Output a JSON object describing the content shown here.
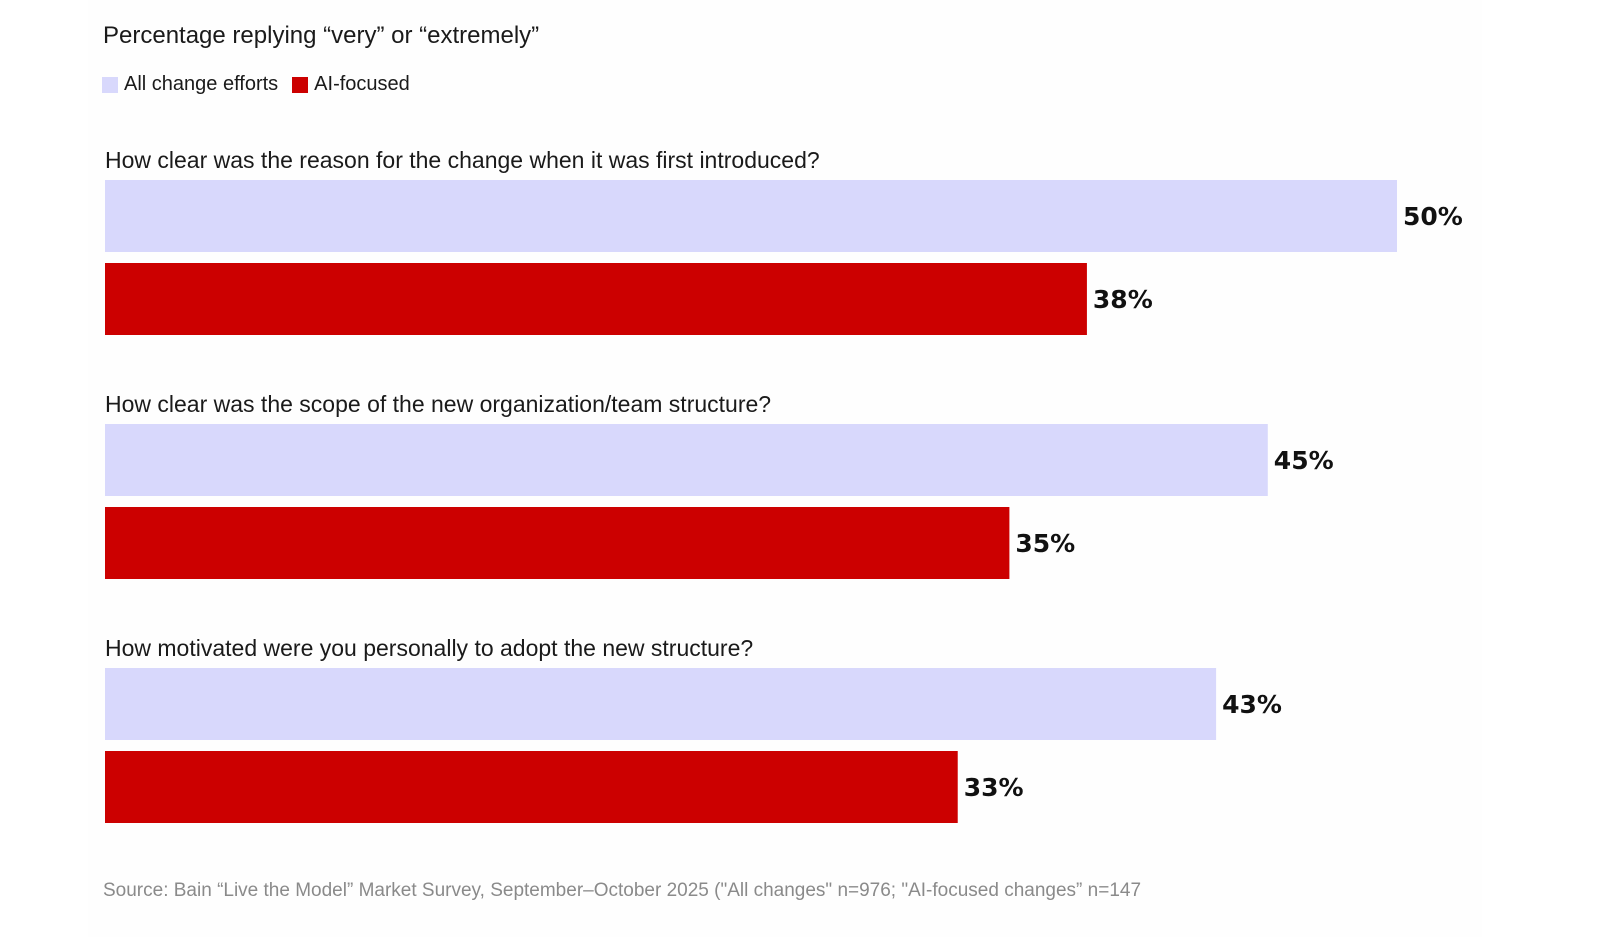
{
  "chart_data": {
    "type": "bar",
    "orientation": "horizontal",
    "subtitle": "Percentage replying “very” or “extremely”",
    "categories": [
      "How clear was the reason for the change when it was first introduced?",
      "How clear was the scope of the new organization/team structure?",
      "How motivated were you personally to adopt the new structure?"
    ],
    "series": [
      {
        "name": "All change efforts",
        "color": "#d8d8fc",
        "values": [
          50,
          45,
          43
        ],
        "labels": [
          "50%",
          "45%",
          "43%"
        ]
      },
      {
        "name": "AI-focused",
        "color": "#cc0000",
        "values": [
          38,
          35,
          33
        ],
        "labels": [
          "38%",
          "35%",
          "33%"
        ]
      }
    ],
    "xlim": [
      0,
      50
    ],
    "grid": false,
    "legend_position": "top-left",
    "source": "Source: Bain “Live the Model” Market Survey, September–October 2025 (\"All changes\" n=976; \"AI-focused changes” n=147"
  }
}
